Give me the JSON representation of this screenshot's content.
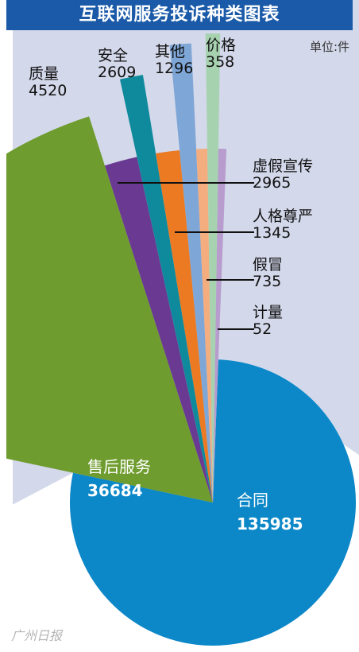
{
  "title": "互联网服务投诉种类图表",
  "unit": "单位:件",
  "watermark": "广州日报",
  "chart_data": {
    "type": "pie",
    "title": "互联网服务投诉种类图表",
    "unit": "件",
    "slices": [
      {
        "label": "合同",
        "value": 135985,
        "color": "#0c88c8"
      },
      {
        "label": "售后服务",
        "value": 36684,
        "color": "#d8262b"
      },
      {
        "label": "质量",
        "value": 4520,
        "color": "#6f9c2e"
      },
      {
        "label": "虚假宣传",
        "value": 2965,
        "color": "#6a3a92"
      },
      {
        "label": "安全",
        "value": 2609,
        "color": "#0f8a9c"
      },
      {
        "label": "人格尊严",
        "value": 1345,
        "color": "#ec7a22"
      },
      {
        "label": "其他",
        "value": 1296,
        "color": "#7ea6d6"
      },
      {
        "label": "假冒",
        "value": 735,
        "color": "#f3ad7e"
      },
      {
        "label": "价格",
        "value": 358,
        "color": "#a7d2b0"
      },
      {
        "label": "计量",
        "value": 52,
        "color": "#b79ccd"
      }
    ]
  },
  "labels": {
    "hetong": {
      "name": "合同",
      "value": "135985"
    },
    "shouhou": {
      "name": "售后服务",
      "value": "36684"
    },
    "zhiliang": {
      "name": "质量",
      "value": "4520"
    },
    "anquan": {
      "name": "安全",
      "value": "2609"
    },
    "qita": {
      "name": "其他",
      "value": "1296"
    },
    "jiage": {
      "name": "价格",
      "value": "358"
    },
    "xujia": {
      "name": "虚假宣传",
      "value": "2965"
    },
    "renge": {
      "name": "人格尊严",
      "value": "1345"
    },
    "jiamao": {
      "name": "假冒",
      "value": "735"
    },
    "jiliang": {
      "name": "计量",
      "value": "52"
    }
  }
}
